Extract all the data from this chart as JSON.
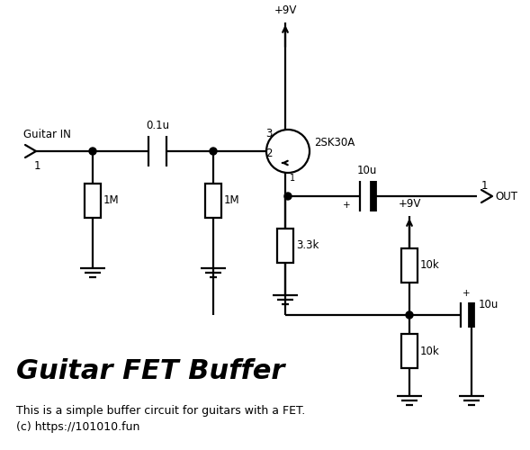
{
  "title": "Guitar FET Buffer",
  "subtitle": "This is a simple buffer circuit for guitars with a FET.",
  "copyright": "(c) https://101010.fun",
  "bg_color": "#ffffff",
  "lc": "#000000",
  "lw": 1.6,
  "title_fontsize": 22,
  "body_fontsize": 9,
  "label_fontsize": 8.5
}
